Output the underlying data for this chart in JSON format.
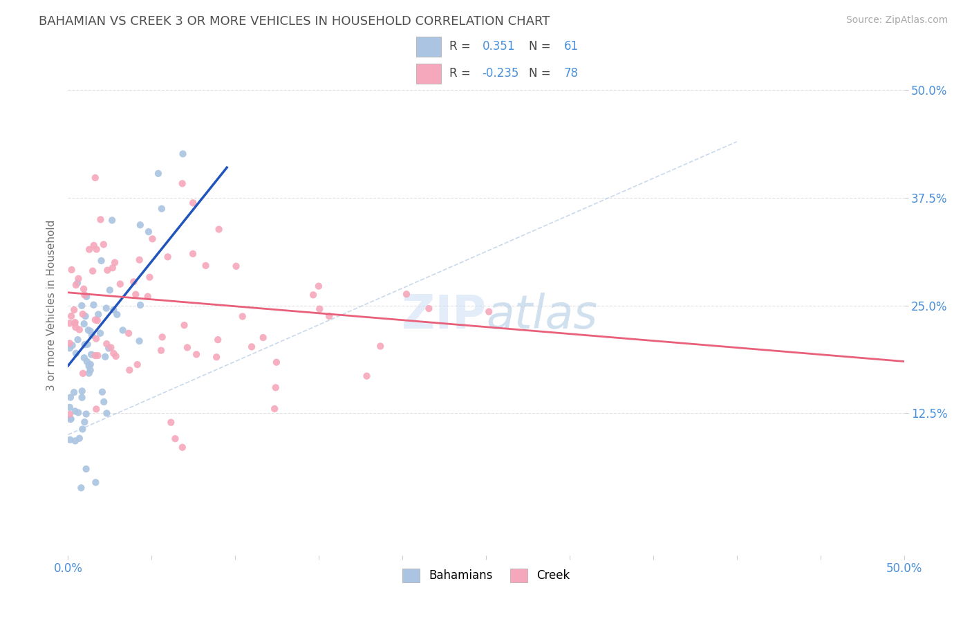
{
  "title": "BAHAMIAN VS CREEK 3 OR MORE VEHICLES IN HOUSEHOLD CORRELATION CHART",
  "source_text": "Source: ZipAtlas.com",
  "ylabel": "3 or more Vehicles in Household",
  "xlim": [
    0.0,
    0.5
  ],
  "ylim": [
    -0.04,
    0.54
  ],
  "legend_R1": "0.351",
  "legend_N1": "61",
  "legend_R2": "-0.235",
  "legend_N2": "78",
  "bahamian_color": "#aac4e2",
  "creek_color": "#f5a8bc",
  "bahamian_line_color": "#2255bb",
  "creek_line_color": "#e8607a",
  "dash_line_color": "#b8cce4",
  "background_color": "#ffffff",
  "grid_color": "#d8d8d8",
  "title_color": "#505050",
  "axis_label_color": "#707070",
  "tick_color": "#4a90d9",
  "watermark_color": "#ccddf0",
  "legend_box_color": "#f5f5f5",
  "legend_box_edge": "#cccccc"
}
